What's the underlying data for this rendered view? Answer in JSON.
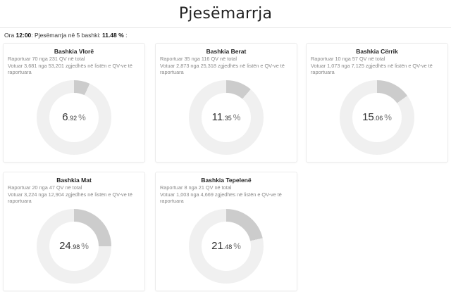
{
  "header": {
    "title": "Pjesëmarrja"
  },
  "summary": {
    "prefix": "Ora",
    "time": "12:00",
    "middle": ": Pjesëmarrja në 5 bashki:",
    "value": "11.48 %",
    "suffix": ":"
  },
  "colors": {
    "ring": "#f0f0f0",
    "fill": "#cccccc"
  },
  "chart_data": [
    {
      "type": "pie",
      "title": "Bashkia Vlorë",
      "desc": "Raportuar 70 nga 231 QV në total\nVotuar 3,681 nga 53,201 zgjedhës në listën e QV-ve të raportuara",
      "value": 6.92,
      "int": "6",
      "dec": ".92",
      "unit": "%"
    },
    {
      "type": "pie",
      "title": "Bashkia Berat",
      "desc": "Raportuar 35 nga 116 QV në total\nVotuar 2,873 nga 25,318 zgjedhës në listën e QV-ve të raportuara",
      "value": 11.35,
      "int": "11",
      "dec": ".35",
      "unit": "%"
    },
    {
      "type": "pie",
      "title": "Bashkia Cërrik",
      "desc": "Raportuar 10 nga 57 QV në total\nVotuar 1,073 nga 7,125 zgjedhës në listën e QV-ve të raportuara",
      "value": 15.06,
      "int": "15",
      "dec": ".06",
      "unit": "%"
    },
    {
      "type": "pie",
      "title": "Bashkia Mat",
      "desc": "Raportuar 20 nga 47 QV në total\nVotuar 3,224 nga 12,904 zgjedhës në listën e QV-ve të raportuara",
      "value": 24.98,
      "int": "24",
      "dec": ".98",
      "unit": "%"
    },
    {
      "type": "pie",
      "title": "Bashkia Tepelenë",
      "desc": "Raportuar 8 nga 21 QV në total\nVotuar 1,003 nga 4,669 zgjedhës në listën e QV-ve të raportuara",
      "value": 21.48,
      "int": "21",
      "dec": ".48",
      "unit": "%"
    }
  ]
}
